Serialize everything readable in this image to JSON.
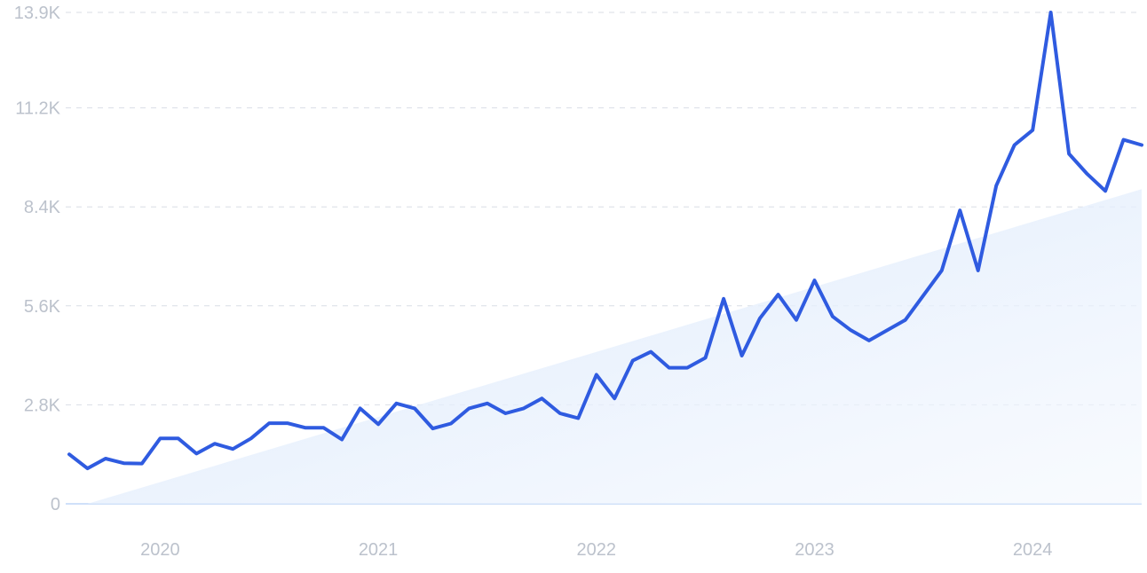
{
  "chart_data": {
    "type": "line",
    "y_ticks": [
      {
        "value": 0,
        "label": "0"
      },
      {
        "value": 2800,
        "label": "2.8K"
      },
      {
        "value": 5600,
        "label": "5.6K"
      },
      {
        "value": 8400,
        "label": "8.4K"
      },
      {
        "value": 11200,
        "label": "11.2K"
      },
      {
        "value": 13900,
        "label": "13.9K"
      }
    ],
    "x_ticks": [
      {
        "value": "2020-01",
        "label": "2020"
      },
      {
        "value": "2021-01",
        "label": "2021"
      },
      {
        "value": "2022-01",
        "label": "2022"
      },
      {
        "value": "2023-01",
        "label": "2023"
      },
      {
        "value": "2024-01",
        "label": "2024"
      }
    ],
    "ylim": [
      0,
      13900
    ],
    "xlim": [
      "2019-08",
      "2024-07"
    ],
    "grid": true,
    "colors": {
      "line": "#2f5be0",
      "trend_fill": "#dce9fb",
      "grid": "#d9dee6",
      "tick_text": "#bcc2cc"
    },
    "trend": {
      "start": {
        "x": "2019-09",
        "y": 0
      },
      "end": {
        "x": "2024-07",
        "y": 8900
      }
    },
    "series": [
      {
        "x": [
          "2019-08",
          "2019-09",
          "2019-10",
          "2019-11",
          "2019-12",
          "2020-01",
          "2020-02",
          "2020-03",
          "2020-04",
          "2020-05",
          "2020-06",
          "2020-07",
          "2020-08",
          "2020-09",
          "2020-10",
          "2020-11",
          "2020-12",
          "2021-01",
          "2021-02",
          "2021-03",
          "2021-04",
          "2021-05",
          "2021-06",
          "2021-07",
          "2021-08",
          "2021-09",
          "2021-10",
          "2021-11",
          "2021-12",
          "2022-01",
          "2022-02",
          "2022-03",
          "2022-04",
          "2022-05",
          "2022-06",
          "2022-07",
          "2022-08",
          "2022-09",
          "2022-10",
          "2022-11",
          "2022-12",
          "2023-01",
          "2023-02",
          "2023-03",
          "2023-04",
          "2023-05",
          "2023-06",
          "2023-07",
          "2023-08",
          "2023-09",
          "2023-10",
          "2023-11",
          "2023-12",
          "2024-01",
          "2024-02",
          "2024-03",
          "2024-04",
          "2024-05",
          "2024-06",
          "2024-07"
        ],
        "values": [
          1400,
          1000,
          1280,
          1150,
          1140,
          1850,
          1850,
          1420,
          1700,
          1550,
          1850,
          2280,
          2280,
          2150,
          2150,
          1820,
          2700,
          2250,
          2840,
          2700,
          2130,
          2270,
          2700,
          2840,
          2560,
          2700,
          2980,
          2560,
          2420,
          3650,
          2980,
          4050,
          4300,
          3850,
          3850,
          4130,
          5800,
          4190,
          5250,
          5920,
          5200,
          6320,
          5300,
          4910,
          4620,
          4910,
          5200,
          5900,
          6600,
          8300,
          6600,
          9000,
          10150,
          10570,
          13900,
          9900,
          9330,
          8850,
          10300,
          10150
        ]
      }
    ]
  }
}
